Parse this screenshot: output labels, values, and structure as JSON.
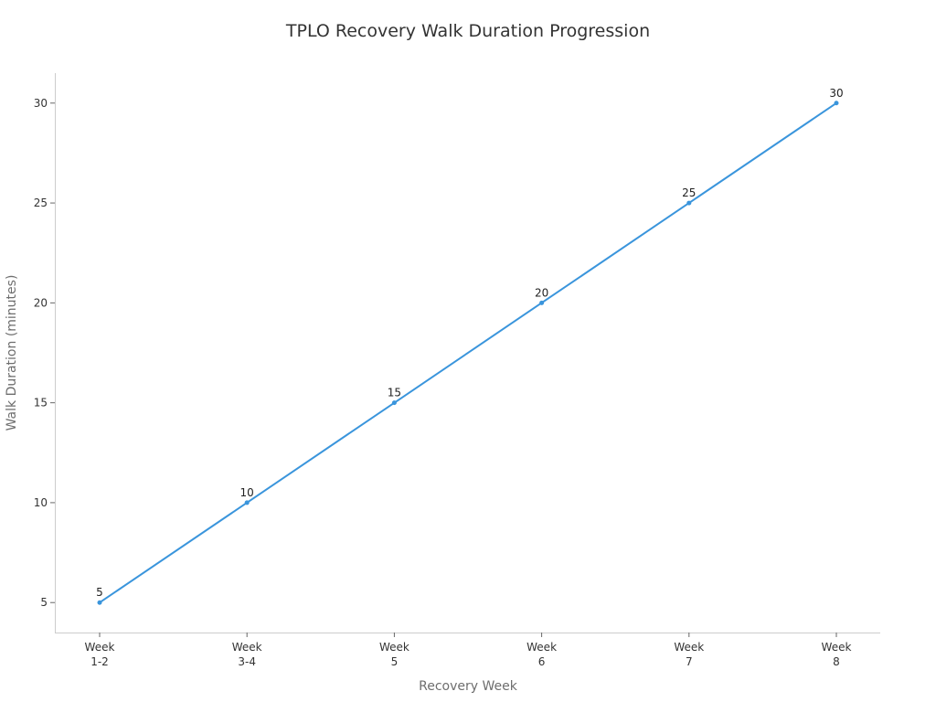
{
  "chart_data": {
    "type": "line",
    "title": "TPLO Recovery Walk Duration Progression",
    "xlabel": "Recovery Week",
    "ylabel": "Walk Duration (minutes)",
    "categories": [
      "Week 1-2",
      "Week 3-4",
      "Week 5",
      "Week 6",
      "Week 7",
      "Week 8"
    ],
    "category_lines": [
      [
        "Week",
        "1-2"
      ],
      [
        "Week",
        "3-4"
      ],
      [
        "Week",
        "5"
      ],
      [
        "Week",
        "6"
      ],
      [
        "Week",
        "7"
      ],
      [
        "Week",
        "8"
      ]
    ],
    "series": [
      {
        "values": [
          5,
          10,
          15,
          20,
          25,
          30
        ],
        "color": "#3a95dc"
      }
    ],
    "ylim": [
      3.5,
      31.5
    ],
    "yticks": [
      5,
      10,
      15,
      20,
      25,
      30
    ],
    "grid": false,
    "legend": "none",
    "data_labels": true
  }
}
